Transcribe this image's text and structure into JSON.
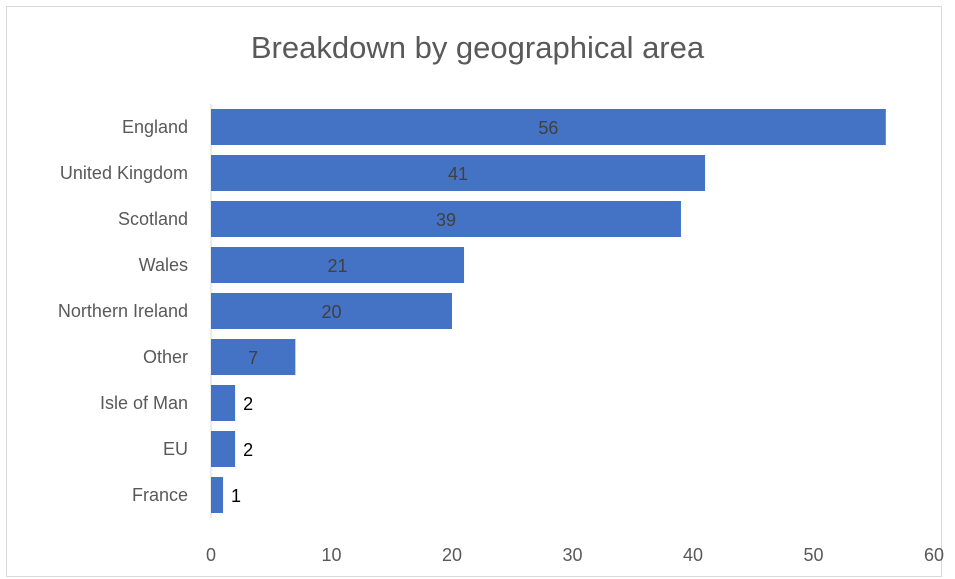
{
  "chart_data": {
    "type": "bar",
    "orientation": "horizontal",
    "title": "Breakdown by geographical area",
    "xlabel": "",
    "ylabel": "",
    "categories": [
      "England",
      "United Kingdom",
      "Scotland",
      "Wales",
      "Northern Ireland",
      "Other",
      "Isle of Man",
      "EU",
      "France"
    ],
    "values": [
      56,
      41,
      39,
      21,
      20,
      7,
      2,
      2,
      1
    ],
    "xlim": [
      0,
      60
    ],
    "x_ticks": [
      0,
      10,
      20,
      30,
      40,
      50,
      60
    ],
    "grid": false,
    "legend": "none",
    "colors": {
      "bar": "#4472c4",
      "label_inside": "#404040",
      "label_outside": "#000000",
      "axis_text": "#595959",
      "title": "#595959",
      "axis_line": "#d9d9d9"
    }
  }
}
